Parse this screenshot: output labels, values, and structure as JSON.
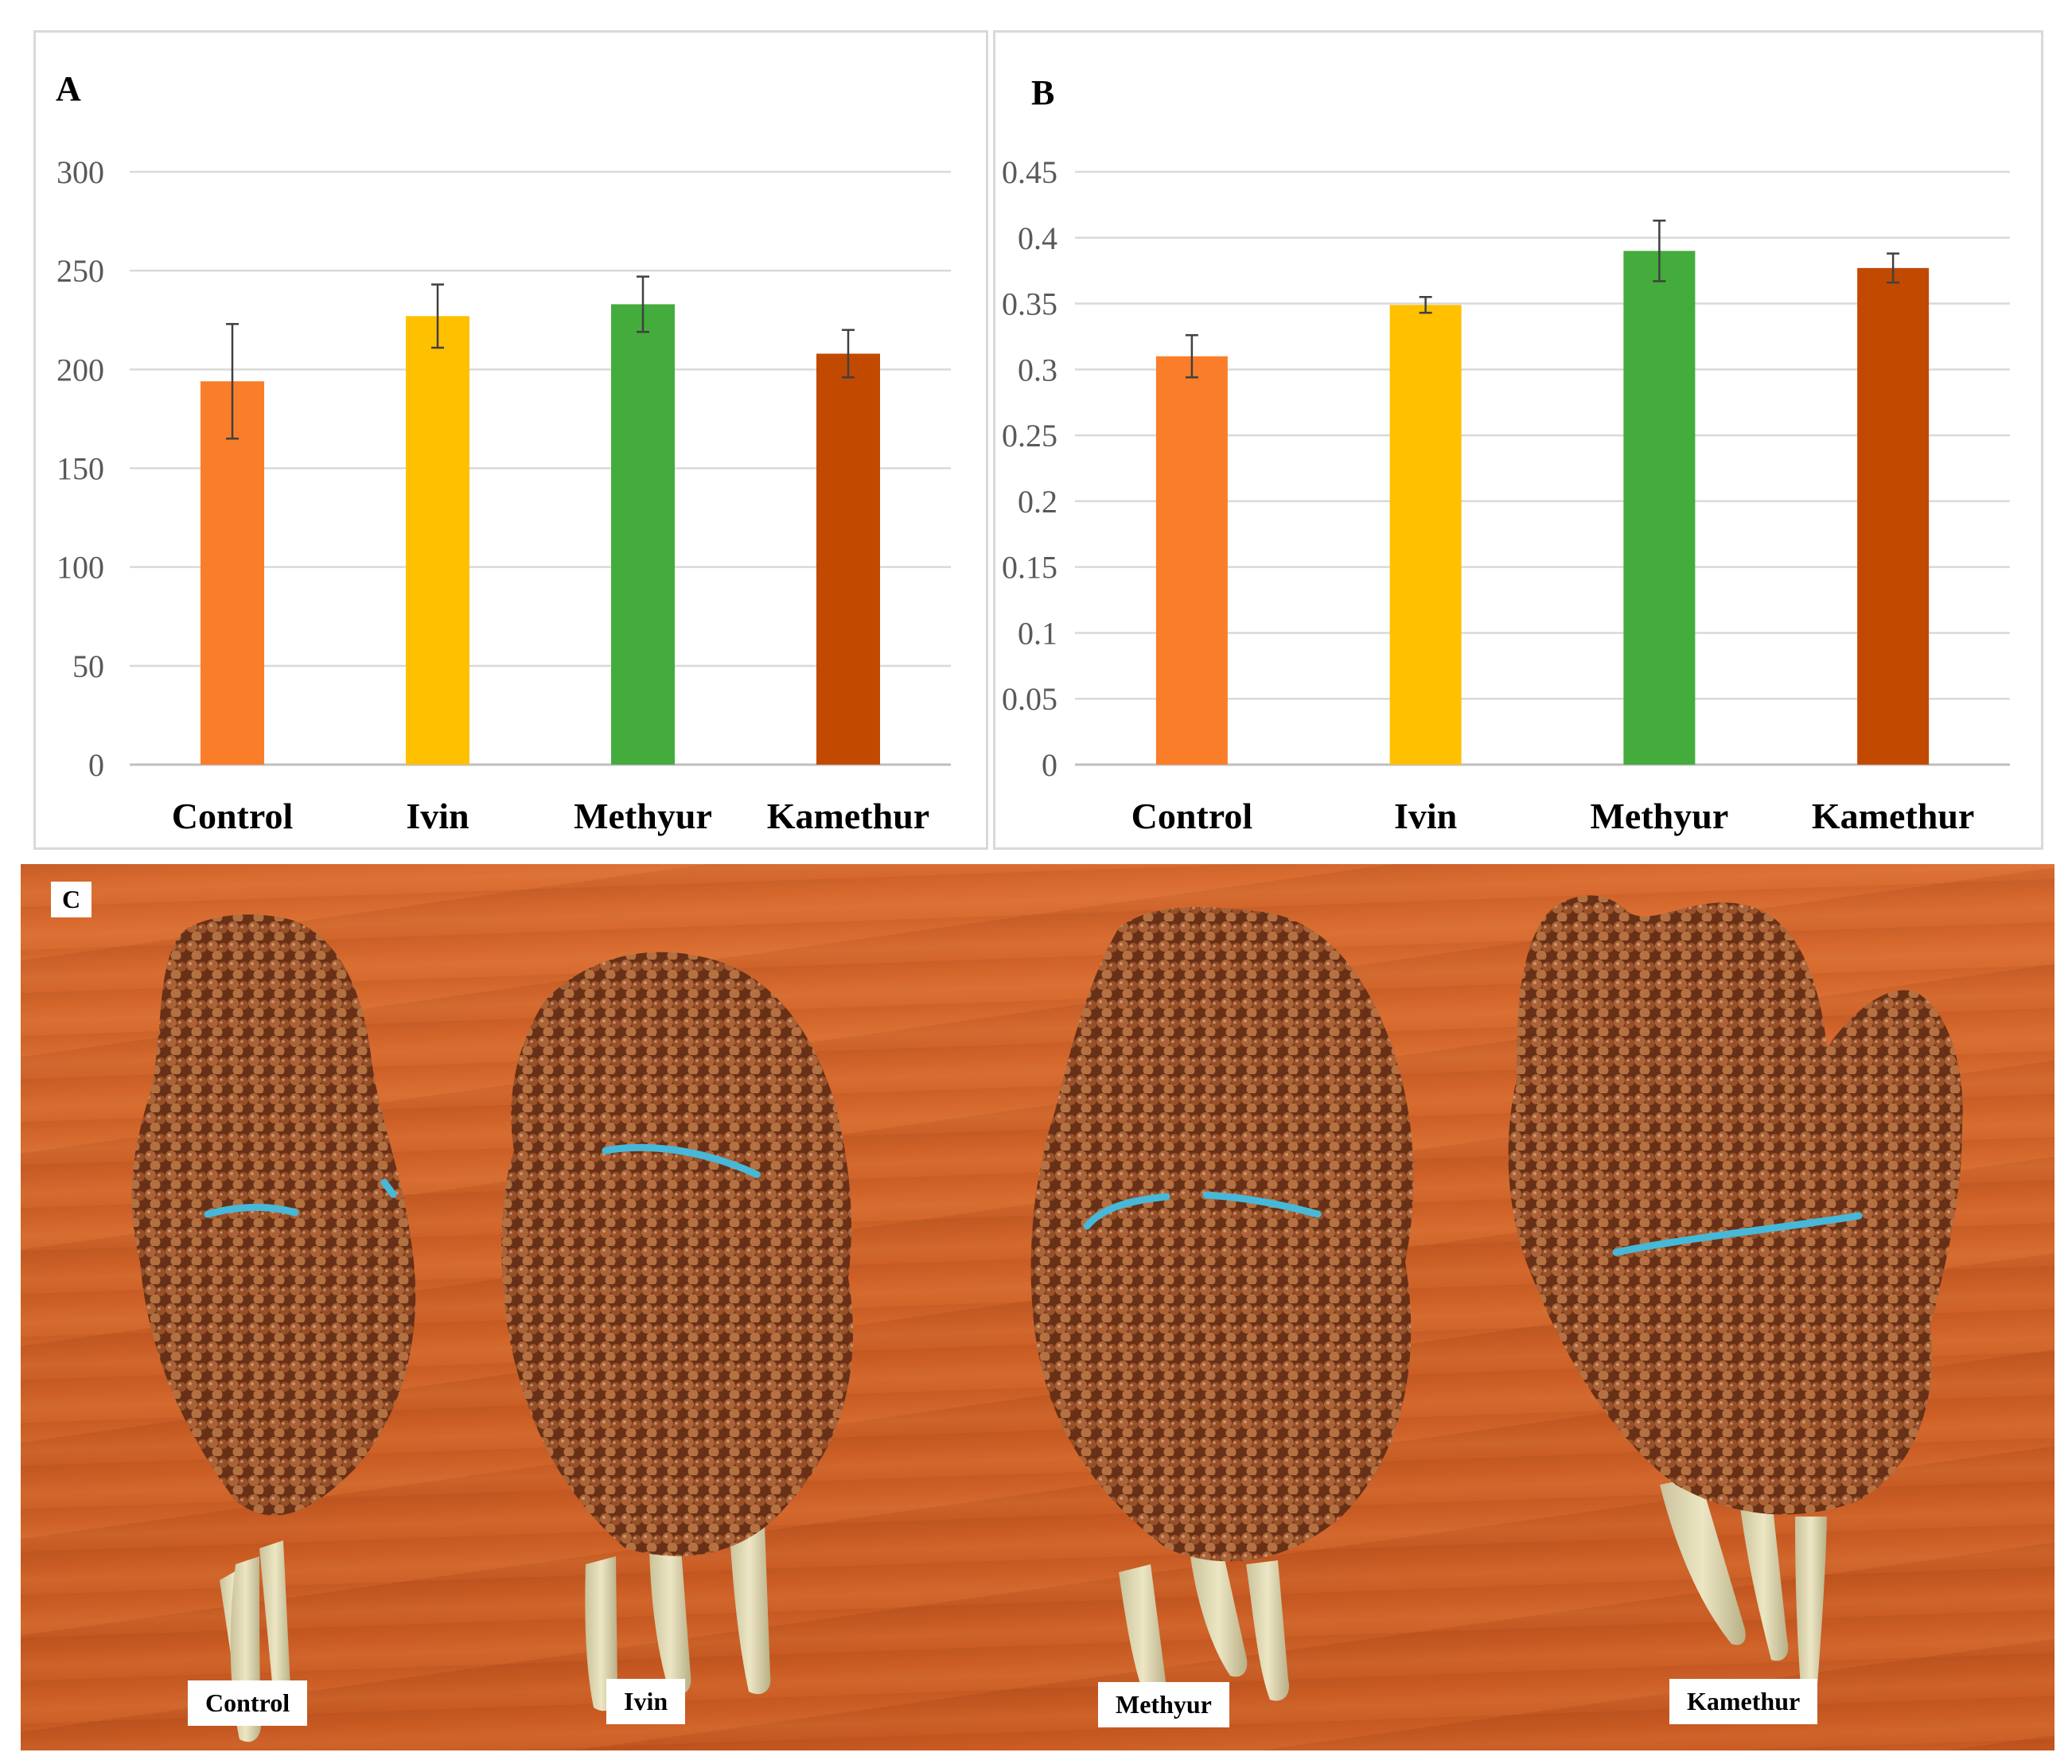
{
  "colors": {
    "control": "#fa7d29",
    "ivin": "#ffc000",
    "methyur": "#44ac3c",
    "kamethur": "#c24a00"
  },
  "chart_data": [
    {
      "type": "bar",
      "panel": "A",
      "categories": [
        "Control",
        "Ivin",
        "Methyur",
        "Kamethur"
      ],
      "values": [
        194,
        227,
        233,
        208
      ],
      "errors": [
        29,
        16,
        14,
        12
      ],
      "yticks": [
        "0",
        "50",
        "100",
        "150",
        "200",
        "250",
        "300"
      ],
      "ylim": [
        0,
        300
      ],
      "grid": true
    },
    {
      "type": "bar",
      "panel": "B",
      "categories": [
        "Control",
        "Ivin",
        "Methyur",
        "Kamethur"
      ],
      "values": [
        0.31,
        0.349,
        0.39,
        0.377
      ],
      "errors": [
        0.016,
        0.006,
        0.023,
        0.011
      ],
      "yticks": [
        "0",
        "0.05",
        "0.1",
        "0.15",
        "0.2",
        "0.25",
        "0.3",
        "0.35",
        "0.4",
        "0.45"
      ],
      "ylim": [
        0,
        0.45
      ],
      "grid": true
    }
  ],
  "photo": {
    "letter": "C",
    "labels": [
      "Control",
      "Ivin",
      "Methyur",
      "Kamethur"
    ]
  }
}
